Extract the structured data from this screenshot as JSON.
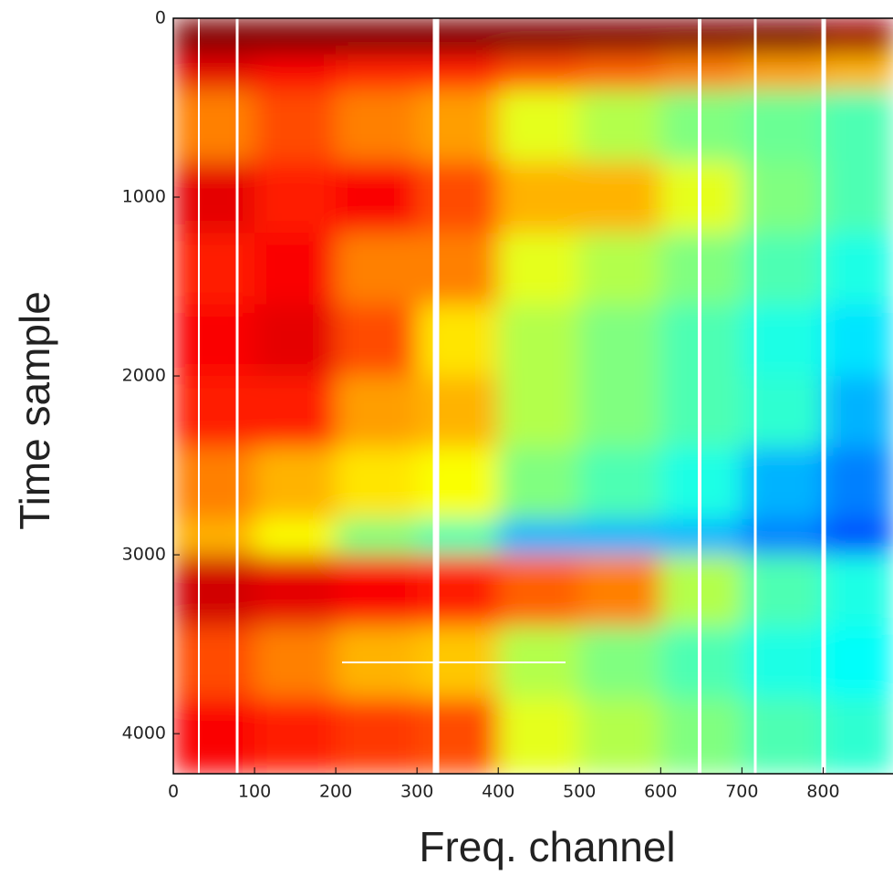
{
  "chart_data": {
    "type": "heatmap",
    "colormap": "jet",
    "x_label": "Freq. channel",
    "y_label": "Time sample",
    "xlim": [
      0,
      886
    ],
    "ylim": [
      4224,
      0
    ],
    "xticks": [
      0,
      100,
      200,
      300,
      400,
      500,
      600,
      700,
      800
    ],
    "yticks": [
      0,
      1000,
      2000,
      3000,
      4000
    ],
    "xbins": [
      0,
      100,
      200,
      300,
      400,
      500,
      600,
      700,
      800,
      886
    ],
    "ybins": [
      0,
      200,
      400,
      800,
      1200,
      1600,
      2000,
      2400,
      2800,
      3000,
      3400,
      3800,
      4224
    ],
    "values": [
      [
        1,
        1,
        1,
        1,
        1,
        1,
        1,
        1,
        0.97
      ],
      [
        0.9,
        0.88,
        0.85,
        0.85,
        0.8,
        0.78,
        0.75,
        0.72,
        0.7
      ],
      [
        0.75,
        0.8,
        0.75,
        0.72,
        0.6,
        0.55,
        0.5,
        0.48,
        0.45
      ],
      [
        0.9,
        0.85,
        0.88,
        0.8,
        0.7,
        0.7,
        0.6,
        0.5,
        0.45
      ],
      [
        0.85,
        0.88,
        0.75,
        0.75,
        0.6,
        0.55,
        0.5,
        0.45,
        0.4
      ],
      [
        0.88,
        0.9,
        0.8,
        0.65,
        0.55,
        0.5,
        0.45,
        0.4,
        0.35
      ],
      [
        0.85,
        0.85,
        0.72,
        0.7,
        0.55,
        0.5,
        0.45,
        0.42,
        0.3
      ],
      [
        0.75,
        0.7,
        0.65,
        0.62,
        0.5,
        0.45,
        0.4,
        0.3,
        0.25
      ],
      [
        0.7,
        0.62,
        0.5,
        0.45,
        0.3,
        0.3,
        0.3,
        0.25,
        0.2
      ],
      [
        0.92,
        0.9,
        0.88,
        0.85,
        0.78,
        0.75,
        0.55,
        0.45,
        0.4
      ],
      [
        0.8,
        0.75,
        0.7,
        0.68,
        0.55,
        0.5,
        0.45,
        0.4,
        0.38
      ],
      [
        0.88,
        0.85,
        0.82,
        0.8,
        0.6,
        0.55,
        0.5,
        0.45,
        0.42
      ]
    ]
  }
}
